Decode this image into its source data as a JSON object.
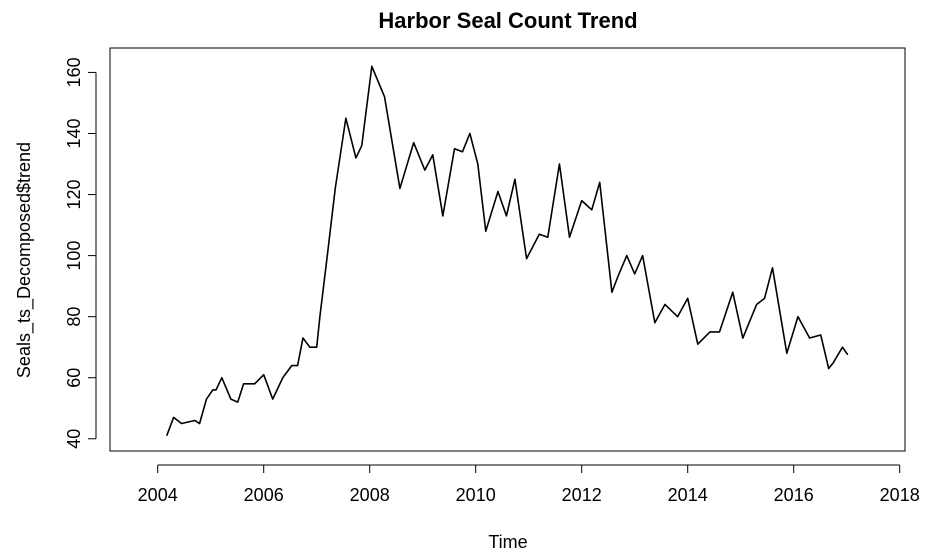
{
  "chart_data": {
    "type": "line",
    "title": "Harbor Seal Count Trend",
    "xlabel": "Time",
    "ylabel": "Seals_ts_Decomposed$trend",
    "x": [
      2004.17,
      2004.3,
      2004.45,
      2004.7,
      2004.79,
      2004.92,
      2005.04,
      2005.1,
      2005.21,
      2005.38,
      2005.51,
      2005.62,
      2005.83,
      2006.0,
      2006.17,
      2006.36,
      2006.53,
      2006.64,
      2006.74,
      2006.87,
      2007.0,
      2007.06,
      2007.2,
      2007.35,
      2007.55,
      2007.74,
      2007.85,
      2008.04,
      2008.28,
      2008.57,
      2008.83,
      2009.04,
      2009.19,
      2009.38,
      2009.6,
      2009.75,
      2009.89,
      2010.04,
      2010.19,
      2010.42,
      2010.58,
      2010.74,
      2010.96,
      2011.2,
      2011.36,
      2011.58,
      2011.77,
      2012.0,
      2012.19,
      2012.34,
      2012.57,
      2012.68,
      2012.85,
      2013.0,
      2013.15,
      2013.38,
      2013.57,
      2013.81,
      2014.0,
      2014.19,
      2014.42,
      2014.6,
      2014.85,
      2015.04,
      2015.3,
      2015.45,
      2015.6,
      2015.87,
      2016.08,
      2016.3,
      2016.51,
      2016.66,
      2016.75,
      2016.92,
      2017.02
    ],
    "series": [
      {
        "name": "trend",
        "color": "#000000",
        "values": [
          41,
          47,
          45,
          46,
          45,
          53,
          56,
          56,
          60,
          53,
          52,
          58,
          58,
          61,
          53,
          60,
          64,
          64,
          73,
          70,
          70,
          80,
          100,
          122,
          145,
          132,
          136,
          162,
          152,
          122,
          137,
          128,
          133,
          113,
          135,
          134,
          140,
          130,
          108,
          121,
          113,
          125,
          99,
          107,
          106,
          130,
          106,
          118,
          115,
          124,
          88,
          93,
          100,
          94,
          100,
          78,
          84,
          80,
          86,
          71,
          75,
          75,
          88,
          73,
          84,
          86,
          96,
          68,
          80,
          73,
          74,
          63,
          65,
          70,
          67.5
        ]
      }
    ],
    "xlim": [
      2003.1,
      2018.1
    ],
    "ylim": [
      36,
      168
    ],
    "xticks": [
      2004,
      2006,
      2008,
      2010,
      2012,
      2014,
      2016,
      2018
    ],
    "yticks": [
      40,
      60,
      80,
      100,
      120,
      140,
      160
    ]
  }
}
